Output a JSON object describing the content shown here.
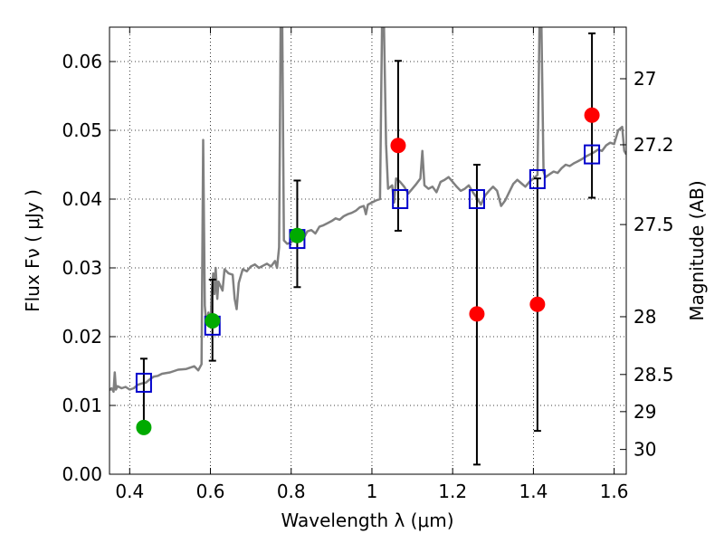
{
  "chart_data": {
    "type": "scatter",
    "xlabel": "Wavelength  λ (μm)",
    "ylabel": "Flux  Fν  ( μJy )",
    "ylabel_right": "Magnitude (AB)",
    "xlim": [
      0.35,
      1.63
    ],
    "ylim": [
      0.0,
      0.065
    ],
    "grid": true,
    "x_ticks": [
      0.4,
      0.6,
      0.8,
      1.0,
      1.2,
      1.4,
      1.6
    ],
    "x_tick_labels": [
      "0.4",
      "0.6",
      "0.8",
      "1",
      "1.2",
      "1.4",
      "1.6"
    ],
    "y_ticks": [
      0.0,
      0.01,
      0.02,
      0.03,
      0.04,
      0.05,
      0.06
    ],
    "y_tick_labels": [
      "0.00",
      "0.01",
      "0.02",
      "0.03",
      "0.04",
      "0.05",
      "0.06"
    ],
    "right_ticks": [
      {
        "label": "27",
        "flux": 0.0575
      },
      {
        "label": "27.2",
        "flux": 0.0479
      },
      {
        "label": "27.5",
        "flux": 0.0363
      },
      {
        "label": "28",
        "flux": 0.0229
      },
      {
        "label": "28.5",
        "flux": 0.0145
      },
      {
        "label": "29",
        "flux": 0.0091
      },
      {
        "label": "30",
        "flux": 0.0036
      }
    ],
    "sed_color": "#808080",
    "sed_model": [
      [
        0.35,
        0.0122
      ],
      [
        0.355,
        0.0125
      ],
      [
        0.36,
        0.012
      ],
      [
        0.363,
        0.0148
      ],
      [
        0.366,
        0.0123
      ],
      [
        0.37,
        0.0128
      ],
      [
        0.38,
        0.0125
      ],
      [
        0.39,
        0.0127
      ],
      [
        0.4,
        0.0123
      ],
      [
        0.41,
        0.0125
      ],
      [
        0.42,
        0.013
      ],
      [
        0.43,
        0.0132
      ],
      [
        0.44,
        0.0133
      ],
      [
        0.45,
        0.0138
      ],
      [
        0.46,
        0.0142
      ],
      [
        0.47,
        0.0143
      ],
      [
        0.48,
        0.0146
      ],
      [
        0.5,
        0.0148
      ],
      [
        0.52,
        0.0152
      ],
      [
        0.54,
        0.0153
      ],
      [
        0.56,
        0.0157
      ],
      [
        0.57,
        0.0151
      ],
      [
        0.578,
        0.016
      ],
      [
        0.582,
        0.0486
      ],
      [
        0.586,
        0.0245
      ],
      [
        0.59,
        0.0218
      ],
      [
        0.595,
        0.0235
      ],
      [
        0.6,
        0.0215
      ],
      [
        0.603,
        0.0262
      ],
      [
        0.607,
        0.0292
      ],
      [
        0.61,
        0.0262
      ],
      [
        0.613,
        0.03
      ],
      [
        0.617,
        0.0255
      ],
      [
        0.62,
        0.028
      ],
      [
        0.63,
        0.0267
      ],
      [
        0.635,
        0.0298
      ],
      [
        0.645,
        0.0292
      ],
      [
        0.655,
        0.029
      ],
      [
        0.66,
        0.0255
      ],
      [
        0.665,
        0.024
      ],
      [
        0.67,
        0.0278
      ],
      [
        0.68,
        0.0298
      ],
      [
        0.69,
        0.0295
      ],
      [
        0.7,
        0.0302
      ],
      [
        0.71,
        0.0305
      ],
      [
        0.72,
        0.03
      ],
      [
        0.73,
        0.0303
      ],
      [
        0.74,
        0.0306
      ],
      [
        0.75,
        0.0302
      ],
      [
        0.76,
        0.031
      ],
      [
        0.765,
        0.03
      ],
      [
        0.77,
        0.033
      ],
      [
        0.774,
        0.065
      ],
      [
        0.778,
        0.065
      ],
      [
        0.782,
        0.034
      ],
      [
        0.79,
        0.0335
      ],
      [
        0.8,
        0.0337
      ],
      [
        0.81,
        0.0343
      ],
      [
        0.82,
        0.0345
      ],
      [
        0.83,
        0.0342
      ],
      [
        0.84,
        0.0353
      ],
      [
        0.85,
        0.0355
      ],
      [
        0.86,
        0.035
      ],
      [
        0.87,
        0.036
      ],
      [
        0.88,
        0.0362
      ],
      [
        0.89,
        0.0365
      ],
      [
        0.9,
        0.0368
      ],
      [
        0.91,
        0.0372
      ],
      [
        0.92,
        0.037
      ],
      [
        0.93,
        0.0375
      ],
      [
        0.94,
        0.0378
      ],
      [
        0.95,
        0.038
      ],
      [
        0.96,
        0.0383
      ],
      [
        0.97,
        0.0388
      ],
      [
        0.98,
        0.039
      ],
      [
        0.985,
        0.0378
      ],
      [
        0.99,
        0.0392
      ],
      [
        1.0,
        0.0395
      ],
      [
        1.01,
        0.0398
      ],
      [
        1.02,
        0.04
      ],
      [
        1.025,
        0.065
      ],
      [
        1.03,
        0.065
      ],
      [
        1.035,
        0.048
      ],
      [
        1.04,
        0.0415
      ],
      [
        1.05,
        0.042
      ],
      [
        1.055,
        0.0395
      ],
      [
        1.06,
        0.043
      ],
      [
        1.07,
        0.0425
      ],
      [
        1.08,
        0.0418
      ],
      [
        1.09,
        0.0408
      ],
      [
        1.1,
        0.0415
      ],
      [
        1.11,
        0.0422
      ],
      [
        1.12,
        0.043
      ],
      [
        1.125,
        0.047
      ],
      [
        1.13,
        0.042
      ],
      [
        1.14,
        0.0415
      ],
      [
        1.15,
        0.0418
      ],
      [
        1.16,
        0.041
      ],
      [
        1.17,
        0.0425
      ],
      [
        1.18,
        0.0428
      ],
      [
        1.19,
        0.0432
      ],
      [
        1.2,
        0.0425
      ],
      [
        1.21,
        0.0418
      ],
      [
        1.22,
        0.0412
      ],
      [
        1.23,
        0.0415
      ],
      [
        1.24,
        0.042
      ],
      [
        1.25,
        0.041
      ],
      [
        1.26,
        0.0402
      ],
      [
        1.27,
        0.0392
      ],
      [
        1.28,
        0.0405
      ],
      [
        1.29,
        0.0412
      ],
      [
        1.3,
        0.0418
      ],
      [
        1.31,
        0.0412
      ],
      [
        1.32,
        0.039
      ],
      [
        1.33,
        0.0398
      ],
      [
        1.34,
        0.041
      ],
      [
        1.35,
        0.0422
      ],
      [
        1.36,
        0.0428
      ],
      [
        1.37,
        0.0423
      ],
      [
        1.38,
        0.0418
      ],
      [
        1.39,
        0.0425
      ],
      [
        1.4,
        0.043
      ],
      [
        1.41,
        0.0435
      ],
      [
        1.415,
        0.065
      ],
      [
        1.42,
        0.065
      ],
      [
        1.425,
        0.044
      ],
      [
        1.43,
        0.0432
      ],
      [
        1.44,
        0.0436
      ],
      [
        1.45,
        0.044
      ],
      [
        1.46,
        0.0438
      ],
      [
        1.47,
        0.0445
      ],
      [
        1.48,
        0.045
      ],
      [
        1.49,
        0.0448
      ],
      [
        1.5,
        0.0452
      ],
      [
        1.51,
        0.0455
      ],
      [
        1.52,
        0.0458
      ],
      [
        1.53,
        0.0462
      ],
      [
        1.54,
        0.0465
      ],
      [
        1.55,
        0.0468
      ],
      [
        1.56,
        0.0472
      ],
      [
        1.57,
        0.047
      ],
      [
        1.58,
        0.0478
      ],
      [
        1.59,
        0.0482
      ],
      [
        1.6,
        0.048
      ],
      [
        1.61,
        0.05
      ],
      [
        1.62,
        0.0505
      ],
      [
        1.625,
        0.047
      ],
      [
        1.63,
        0.0465
      ]
    ],
    "model_photometry": {
      "marker": "open-square",
      "color": "#0000cc",
      "x": [
        0.435,
        0.605,
        0.815,
        1.07,
        1.26,
        1.41,
        1.545
      ],
      "y": [
        0.0133,
        0.0216,
        0.0342,
        0.04,
        0.04,
        0.0429,
        0.0465
      ]
    },
    "observed_photometry": [
      {
        "x": 0.435,
        "y": 0.0068,
        "yerr_low": 0.0068,
        "yerr_high": 0.0168,
        "color": "#00aa00"
      },
      {
        "x": 0.605,
        "y": 0.0223,
        "yerr_low": 0.0165,
        "yerr_high": 0.0283,
        "color": "#00aa00"
      },
      {
        "x": 0.815,
        "y": 0.0347,
        "yerr_low": 0.0272,
        "yerr_high": 0.0427,
        "color": "#00aa00"
      },
      {
        "x": 1.065,
        "y": 0.0478,
        "yerr_low": 0.0354,
        "yerr_high": 0.0601,
        "color": "#ff0000"
      },
      {
        "x": 1.26,
        "y": 0.0233,
        "yerr_low": 0.0014,
        "yerr_high": 0.045,
        "color": "#ff0000"
      },
      {
        "x": 1.41,
        "y": 0.0247,
        "yerr_low": 0.0063,
        "yerr_high": 0.043,
        "color": "#ff0000"
      },
      {
        "x": 1.545,
        "y": 0.0522,
        "yerr_low": 0.0402,
        "yerr_high": 0.0641,
        "color": "#ff0000"
      }
    ]
  }
}
